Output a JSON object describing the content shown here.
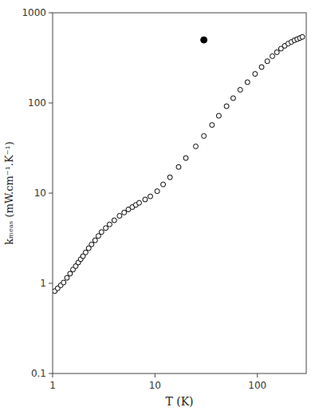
{
  "chart_data": {
    "type": "scatter",
    "title": "",
    "xlabel": "T  (K)",
    "ylabel": "kₘₑₐₛ  (mW.cm⁻¹.K⁻¹)",
    "log": true,
    "grid": false,
    "xlim": [
      1,
      300
    ],
    "ylim": [
      0.1,
      1000
    ],
    "xticks": [
      1,
      10,
      100
    ],
    "yticks": [
      0.1,
      1,
      10,
      100,
      1000
    ],
    "series": [
      {
        "color": "#000000",
        "marker": "open-circle",
        "x": [
          1.05,
          1.12,
          1.2,
          1.28,
          1.38,
          1.48,
          1.58,
          1.68,
          1.78,
          1.88,
          1.98,
          2.1,
          2.25,
          2.4,
          2.6,
          2.8,
          3.0,
          3.3,
          3.6,
          4.0,
          4.5,
          5.0,
          5.5,
          6.0,
          6.5,
          7.0,
          8.0,
          9.0,
          10.5,
          12.0,
          14.0,
          17.0,
          20.0,
          25.0,
          30.0,
          36.0,
          42.0,
          50.0,
          58.0,
          68.0,
          80.0,
          95.0,
          110.0,
          125.0,
          140.0,
          155.0,
          170.0,
          185.0,
          200.0,
          215.0,
          230.0,
          245.0,
          260.0,
          275.0
        ],
        "values": [
          0.82,
          0.88,
          0.95,
          1.02,
          1.15,
          1.28,
          1.42,
          1.55,
          1.7,
          1.85,
          2.0,
          2.2,
          2.45,
          2.7,
          3.0,
          3.35,
          3.7,
          4.1,
          4.5,
          5.0,
          5.6,
          6.1,
          6.6,
          7.0,
          7.4,
          7.8,
          8.5,
          9.2,
          10.5,
          12.5,
          15.0,
          19.5,
          24.5,
          33.0,
          43.0,
          57.0,
          72.0,
          92.0,
          113.0,
          140.0,
          170.0,
          210.0,
          250.0,
          290.0,
          330.0,
          365.0,
          400.0,
          430.0,
          455.0,
          475.0,
          495.0,
          510.0,
          525.0,
          540.0
        ]
      },
      {
        "color": "#000000",
        "marker": "filled-circle",
        "x": [
          30.0
        ],
        "values": [
          500.0
        ]
      }
    ]
  }
}
